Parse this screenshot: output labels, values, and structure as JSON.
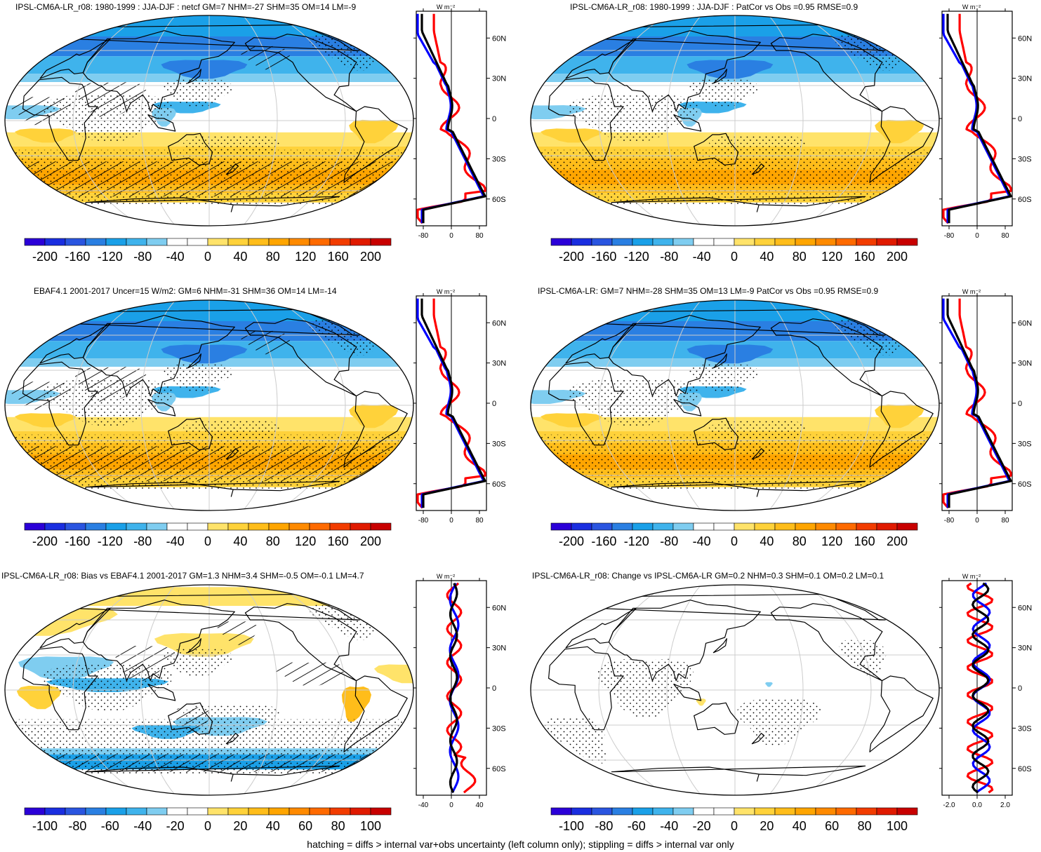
{
  "panels": [
    {
      "title": "IPSL-CM6A-LR_r08: 1980-1999 : JJA-DJF : netcf GM=7 NHM=-27 SHM=35 OM=14 LM=-9",
      "colorbar_ticks": [
        "-200",
        "-160",
        "-120",
        "-80",
        "-40",
        "0",
        "40",
        "80",
        "120",
        "160",
        "200"
      ],
      "zonal_xticks": [
        "-80",
        "0",
        "80"
      ],
      "zonal_yticks": [
        "60N",
        "30N",
        "0",
        "30S",
        "60S"
      ],
      "zonal_unit": "W m⁻²",
      "hatching": true
    },
    {
      "title": "IPSL-CM6A-LR_r08: 1980-1999 : JJA-DJF : PatCor vs Obs =0.95 RMSE=0.9",
      "colorbar_ticks": [
        "-200",
        "-160",
        "-120",
        "-80",
        "-40",
        "0",
        "40",
        "80",
        "120",
        "160",
        "200"
      ],
      "zonal_xticks": [
        "-80",
        "0",
        "80"
      ],
      "zonal_yticks": [
        "60N",
        "30N",
        "0",
        "30S",
        "60S"
      ],
      "zonal_unit": "W m⁻²",
      "hatching": false
    },
    {
      "title": "EBAF4.1 2001-2017 Uncer=15 W/m2: GM=6 NHM=-31 SHM=36 OM=14 LM=-14",
      "colorbar_ticks": [
        "-200",
        "-160",
        "-120",
        "-80",
        "-40",
        "0",
        "40",
        "80",
        "120",
        "160",
        "200"
      ],
      "zonal_xticks": [
        "-80",
        "0",
        "80"
      ],
      "zonal_yticks": [
        "60N",
        "30N",
        "0",
        "30S",
        "60S"
      ],
      "zonal_unit": "W m⁻²",
      "hatching": true
    },
    {
      "title": "IPSL-CM6A-LR: GM=7 NHM=-28 SHM=35 OM=13 LM=-9 PatCor vs Obs =0.95 RMSE=0.9",
      "colorbar_ticks": [
        "-200",
        "-160",
        "-120",
        "-80",
        "-40",
        "0",
        "40",
        "80",
        "120",
        "160",
        "200"
      ],
      "zonal_xticks": [
        "-80",
        "0",
        "80"
      ],
      "zonal_yticks": [
        "60N",
        "30N",
        "0",
        "30S",
        "60S"
      ],
      "zonal_unit": "W m⁻²",
      "hatching": false
    },
    {
      "title": "IPSL-CM6A-LR_r08: Bias vs EBAF4.1 2001-2017 GM=1.3 NHM=3.4 SHM=-0.5 OM=-0.1 LM=4.7",
      "colorbar_ticks": [
        "-100",
        "-80",
        "-60",
        "-40",
        "-20",
        "0",
        "20",
        "40",
        "60",
        "80",
        "100"
      ],
      "zonal_xticks": [
        "-40",
        "0",
        "40"
      ],
      "zonal_yticks": [
        "60N",
        "30N",
        "0",
        "30S",
        "60S"
      ],
      "zonal_unit": "W m⁻²",
      "hatching": true
    },
    {
      "title": "IPSL-CM6A-LR_r08: Change vs IPSL-CM6A-LR GM=0.2 NHM=0.3 SHM=0.1 OM=0.2 LM=0.1",
      "colorbar_ticks": [
        "-100",
        "-80",
        "-60",
        "-40",
        "-20",
        "0",
        "20",
        "40",
        "60",
        "80",
        "100"
      ],
      "zonal_xticks": [
        "-2.0",
        "0.0",
        "2.0"
      ],
      "zonal_yticks": [
        "60N",
        "30N",
        "0",
        "30S",
        "60S"
      ],
      "zonal_unit": "W m⁻²",
      "hatching": false
    }
  ],
  "colors": {
    "palette": [
      "#2b00d8",
      "#1a2ee0",
      "#2a55e0",
      "#2a7fe2",
      "#1aa0e8",
      "#3fb3ec",
      "#7fcdf0",
      "#ffffff",
      "#ffffff",
      "#ffe36a",
      "#ffd23a",
      "#ffbd1a",
      "#ffa500",
      "#ff8a00",
      "#ff6a00",
      "#f23c00",
      "#e01a00",
      "#c80000"
    ],
    "land_outline": "#000000",
    "line_red": "#ff0000",
    "line_blue": "#0000ff",
    "line_black": "#000000"
  },
  "footer": "hatching = diffs > internal var+obs uncertainty (left column only); stippling = diffs > internal var only"
}
